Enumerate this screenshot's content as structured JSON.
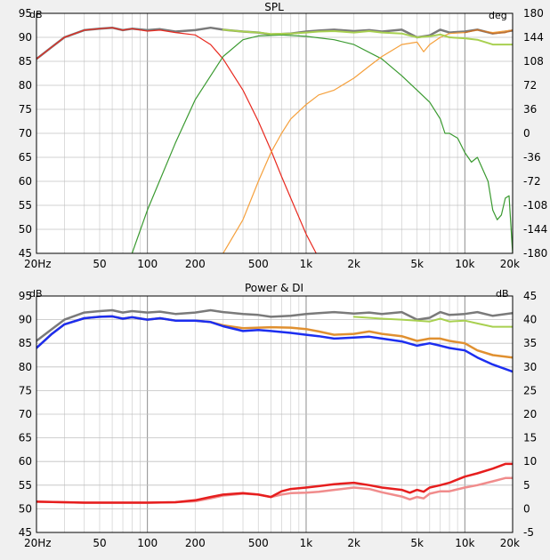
{
  "chart_data": [
    {
      "type": "line",
      "title": "SPL",
      "y_unit_left": "dB",
      "y_unit_right": "deg",
      "xscale": "log",
      "xlim": [
        20,
        20000
      ],
      "ylim": [
        45,
        95
      ],
      "ylim_right": [
        -180,
        180
      ],
      "grid": true,
      "x_ticks": [
        {
          "value": 20,
          "label": "20Hz"
        },
        {
          "value": 50,
          "label": "50"
        },
        {
          "value": 100,
          "label": "100"
        },
        {
          "value": 200,
          "label": "200"
        },
        {
          "value": 500,
          "label": "500"
        },
        {
          "value": 1000,
          "label": "1k"
        },
        {
          "value": 2000,
          "label": "2k"
        },
        {
          "value": 5000,
          "label": "5k"
        },
        {
          "value": 10000,
          "label": "10k"
        },
        {
          "value": 20000,
          "label": "20k"
        }
      ],
      "y_ticks": [
        "45",
        "50",
        "55",
        "60",
        "65",
        "70",
        "75",
        "80",
        "85",
        "90",
        "95"
      ],
      "y_ticks_right": [
        "-180",
        "-144",
        "-108",
        "-72",
        "-36",
        "0",
        "36",
        "72",
        "108",
        "144",
        "180"
      ],
      "series": [
        {
          "color": "#7a7a7a",
          "width": 2.5,
          "x": [
            20,
            25,
            30,
            40,
            50,
            60,
            70,
            80,
            100,
            120,
            150,
            200,
            250,
            300,
            400,
            500,
            600,
            800,
            1000,
            1200,
            1500,
            2000,
            2500,
            3000,
            4000,
            5000,
            6000,
            7000,
            8000,
            10000,
            12000,
            15000,
            20000
          ],
          "y": [
            85.5,
            88,
            90,
            91.5,
            91.8,
            92,
            91.5,
            91.8,
            91.5,
            91.7,
            91.2,
            91.5,
            92,
            91.6,
            91.2,
            91,
            90.6,
            90.8,
            91.2,
            91.4,
            91.6,
            91.3,
            91.5,
            91.2,
            91.6,
            90,
            90.4,
            91.6,
            91,
            91.2,
            91.6,
            90.8,
            91.4
          ]
        },
        {
          "color": "#e8281e",
          "width": 1.2,
          "x": [
            20,
            25,
            30,
            40,
            50,
            60,
            70,
            80,
            100,
            120,
            150,
            200,
            250,
            300,
            400,
            500,
            600,
            700,
            800,
            1000,
            1200
          ],
          "y": [
            85.5,
            88,
            90,
            91.5,
            91.8,
            92,
            91.5,
            91.8,
            91.3,
            91.5,
            91,
            90.5,
            88.5,
            85.5,
            79,
            72.5,
            66.5,
            61,
            56.5,
            49,
            44
          ]
        },
        {
          "color": "#3a9a30",
          "width": 1.2,
          "x": [
            70,
            80,
            100,
            150,
            200,
            300,
            400,
            500,
            700,
            1000,
            1500,
            2000,
            3000,
            4000,
            5000,
            6000,
            7000,
            7500,
            8000,
            9000,
            10000,
            11000,
            12000,
            14000,
            15000,
            16000,
            17000,
            18000,
            19000,
            20000
          ],
          "y": [
            40,
            45,
            54,
            68,
            77,
            86,
            89.5,
            90.3,
            90.5,
            90.2,
            89.5,
            88.5,
            85.5,
            82,
            79,
            76.5,
            73,
            70,
            70,
            69,
            66,
            64,
            65,
            60,
            54,
            52,
            53,
            56.5,
            57,
            45
          ]
        },
        {
          "color": "#f5a03c",
          "width": 1.2,
          "x": [
            300,
            400,
            500,
            600,
            700,
            800,
            1000,
            1200,
            1500,
            2000,
            2500,
            3000,
            4000,
            5000,
            5500,
            6000,
            7000,
            8000,
            10000,
            12000,
            15000,
            20000
          ],
          "y": [
            45,
            52,
            60,
            66,
            70,
            73,
            76,
            78,
            79,
            81.5,
            84,
            86,
            88.5,
            89,
            87,
            88.5,
            90,
            90.8,
            91,
            91.5,
            91,
            91.5
          ]
        },
        {
          "color": "#a8d050",
          "width": 2,
          "x": [
            300,
            400,
            500,
            600,
            800,
            1000,
            1200,
            1500,
            2000,
            2500,
            3000,
            4000,
            5000,
            6000,
            7000,
            8000,
            10000,
            12000,
            15000,
            20000
          ],
          "y": [
            91.6,
            91.2,
            91,
            90.7,
            90.8,
            91,
            91.2,
            91.3,
            91,
            91.3,
            91,
            90.8,
            90,
            90.2,
            90.6,
            90,
            89.8,
            89.5,
            88.5,
            88.5
          ]
        },
        {
          "color": "#c07030",
          "width": 1.5,
          "x": [
            10000,
            12000,
            15000,
            18000,
            20000
          ],
          "y": [
            91,
            91.6,
            90.8,
            91,
            91.5
          ]
        }
      ]
    },
    {
      "type": "line",
      "title": "Power & DI",
      "y_unit_left": "dB",
      "y_unit_right": "dB",
      "xscale": "log",
      "xlim": [
        20,
        20000
      ],
      "ylim": [
        45,
        95
      ],
      "ylim_right": [
        -5,
        45
      ],
      "grid": true,
      "x_ticks": [
        {
          "value": 20,
          "label": "20Hz"
        },
        {
          "value": 50,
          "label": "50"
        },
        {
          "value": 100,
          "label": "100"
        },
        {
          "value": 200,
          "label": "200"
        },
        {
          "value": 500,
          "label": "500"
        },
        {
          "value": 1000,
          "label": "1k"
        },
        {
          "value": 2000,
          "label": "2k"
        },
        {
          "value": 5000,
          "label": "5k"
        },
        {
          "value": 10000,
          "label": "10k"
        },
        {
          "value": 20000,
          "label": "20k"
        }
      ],
      "y_ticks": [
        "45",
        "50",
        "55",
        "60",
        "65",
        "70",
        "75",
        "80",
        "85",
        "90",
        "95"
      ],
      "y_ticks_right": [
        "-5",
        "0",
        "5",
        "10",
        "15",
        "20",
        "25",
        "30",
        "35",
        "40",
        "45"
      ],
      "series": [
        {
          "color": "#7a7a7a",
          "width": 2.5,
          "x": [
            20,
            25,
            30,
            40,
            50,
            60,
            70,
            80,
            100,
            120,
            150,
            200,
            250,
            300,
            400,
            500,
            600,
            800,
            1000,
            1200,
            1500,
            2000,
            2500,
            3000,
            4000,
            5000,
            6000,
            7000,
            8000,
            10000,
            12000,
            15000,
            20000
          ],
          "y": [
            85.5,
            88,
            90,
            91.5,
            91.8,
            92,
            91.5,
            91.8,
            91.5,
            91.7,
            91.2,
            91.5,
            92,
            91.6,
            91.2,
            91,
            90.6,
            90.8,
            91.2,
            91.4,
            91.6,
            91.3,
            91.5,
            91.2,
            91.6,
            90,
            90.4,
            91.6,
            91,
            91.2,
            91.6,
            90.8,
            91.4
          ]
        },
        {
          "color": "#a8d050",
          "width": 2,
          "x": [
            2000,
            3000,
            4000,
            5000,
            6000,
            7000,
            8000,
            10000,
            12000,
            15000,
            20000
          ],
          "y": [
            90.6,
            90.2,
            90,
            89.8,
            89.6,
            90.2,
            89.6,
            89.8,
            89.2,
            88.5,
            88.5
          ]
        },
        {
          "color": "#e09030",
          "width": 2.5,
          "x": [
            20,
            25,
            30,
            40,
            50,
            60,
            70,
            80,
            100,
            120,
            150,
            200,
            250,
            300,
            400,
            500,
            600,
            800,
            1000,
            1200,
            1500,
            2000,
            2500,
            3000,
            4000,
            5000,
            6000,
            7000,
            8000,
            10000,
            12000,
            15000,
            20000
          ],
          "y": [
            84,
            87,
            89,
            90.3,
            90.6,
            90.7,
            90.2,
            90.5,
            90,
            90.3,
            89.8,
            89.8,
            89.5,
            88.8,
            88.2,
            88.3,
            88.4,
            88.3,
            88,
            87.5,
            86.8,
            87,
            87.5,
            87,
            86.5,
            85.5,
            86,
            86,
            85.5,
            85,
            83.5,
            82.5,
            82
          ]
        },
        {
          "color": "#1c2ef0",
          "width": 2.5,
          "x": [
            20,
            25,
            30,
            40,
            50,
            60,
            70,
            80,
            100,
            120,
            150,
            200,
            250,
            300,
            400,
            500,
            600,
            800,
            1000,
            1200,
            1500,
            2000,
            2500,
            3000,
            4000,
            5000,
            6000,
            7000,
            8000,
            10000,
            12000,
            15000,
            20000
          ],
          "y": [
            84,
            87,
            89,
            90.3,
            90.6,
            90.7,
            90.2,
            90.5,
            90,
            90.3,
            89.8,
            89.8,
            89.5,
            88.6,
            87.6,
            87.8,
            87.6,
            87.2,
            86.8,
            86.5,
            86,
            86.2,
            86.4,
            86,
            85.4,
            84.5,
            85,
            84.5,
            84,
            83.5,
            82,
            80.5,
            79
          ]
        },
        {
          "color": "#f08c8c",
          "width": 2.5,
          "x": [
            20,
            40,
            60,
            80,
            100,
            150,
            200,
            250,
            300,
            400,
            500,
            600,
            700,
            800,
            1000,
            1200,
            1500,
            2000,
            2500,
            3000,
            4000,
            4500,
            5000,
            5500,
            6000,
            7000,
            8000,
            10000,
            12000,
            15000,
            18000,
            20000
          ],
          "y": [
            51.5,
            51.3,
            51.3,
            51.3,
            51.3,
            51.4,
            51.6,
            52.2,
            52.8,
            53.2,
            53,
            52.5,
            53,
            53.3,
            53.4,
            53.6,
            54,
            54.5,
            54.2,
            53.5,
            52.6,
            52,
            52.5,
            52.2,
            53.2,
            53.7,
            53.7,
            54.5,
            55,
            55.8,
            56.5,
            56.5
          ]
        },
        {
          "color": "#e61e1e",
          "width": 2.5,
          "x": [
            20,
            40,
            60,
            80,
            100,
            150,
            200,
            250,
            300,
            400,
            500,
            600,
            700,
            800,
            1000,
            1200,
            1500,
            2000,
            2500,
            3000,
            4000,
            4500,
            5000,
            5500,
            6000,
            7000,
            8000,
            10000,
            12000,
            15000,
            18000,
            20000
          ],
          "y": [
            51.5,
            51.3,
            51.3,
            51.3,
            51.3,
            51.4,
            51.8,
            52.5,
            53,
            53.3,
            53,
            52.5,
            53.7,
            54.2,
            54.5,
            54.8,
            55.2,
            55.5,
            55,
            54.5,
            54,
            53.4,
            54,
            53.6,
            54.5,
            55,
            55.5,
            56.8,
            57.5,
            58.5,
            59.5,
            59.5
          ]
        }
      ]
    }
  ]
}
